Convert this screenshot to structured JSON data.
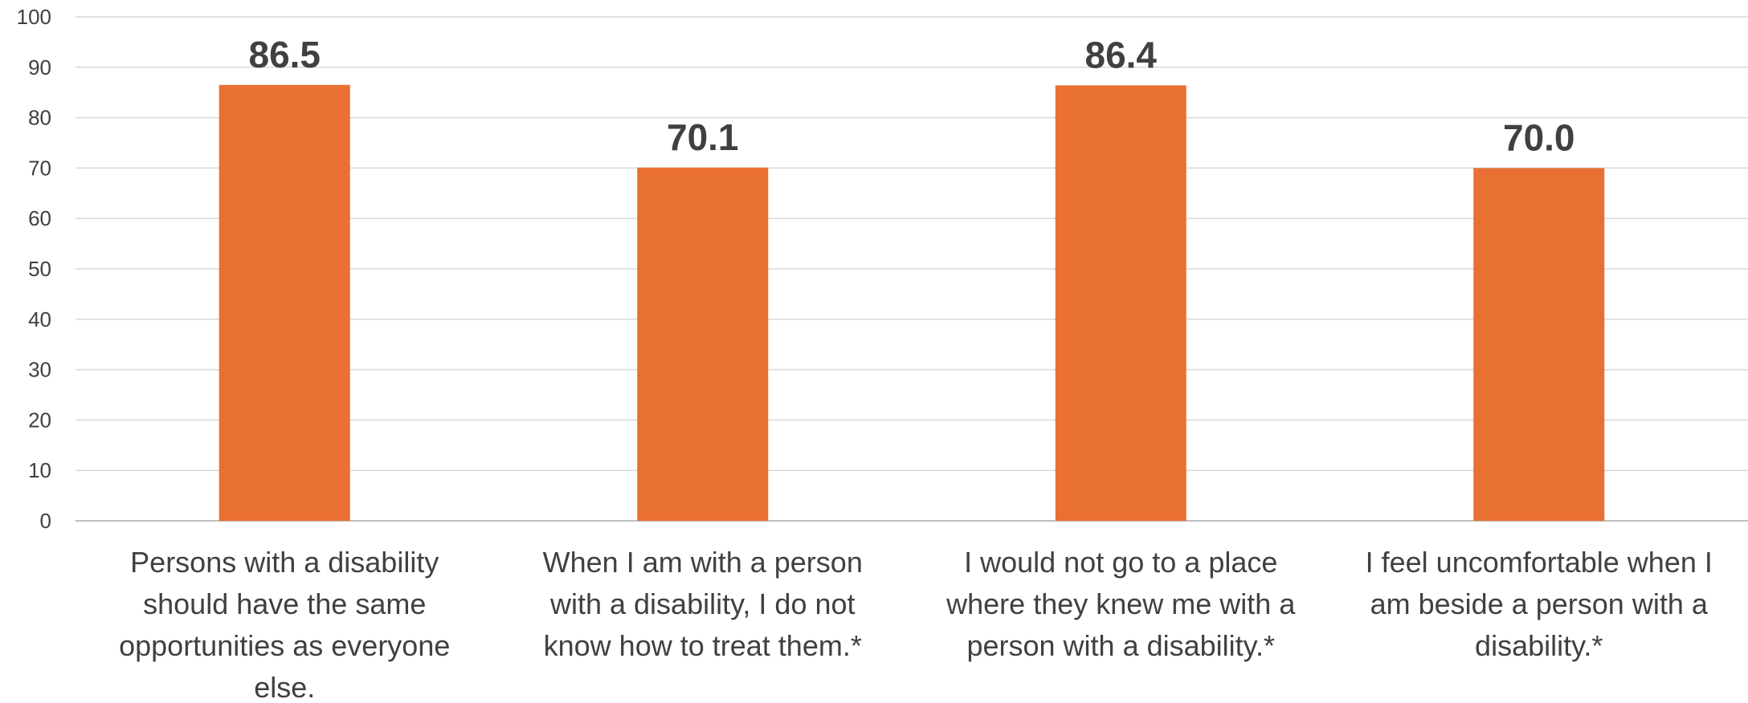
{
  "chart_data": {
    "type": "bar",
    "title": "",
    "xlabel": "",
    "ylabel": "",
    "ylim": [
      0,
      100
    ],
    "yticks": [
      0,
      10,
      20,
      30,
      40,
      50,
      60,
      70,
      80,
      90,
      100
    ],
    "grid": true,
    "legend": "none",
    "categories": [
      "Persons with a disability should have the same opportunities as everyone else.",
      "When I am with a person with a disability, I do not know how to treat them.*",
      "I would not go to a place where they knew me with a person with a disability.*",
      "I feel uncomfortable when I am beside a person with a disability.*"
    ],
    "category_label_lines": [
      [
        "Persons with a disability",
        "should have the same",
        "opportunities as everyone",
        "else."
      ],
      [
        "When I am with a person",
        "with a disability, I do not",
        "know how to treat them.*"
      ],
      [
        "I would not go to a place",
        "where they knew me with a",
        "person with a disability.*"
      ],
      [
        "I feel uncomfortable when I",
        "am beside a person with a",
        "disability.*"
      ]
    ],
    "values": [
      86.5,
      70.1,
      86.4,
      70.0
    ],
    "data_labels": [
      "86.5",
      "70.1",
      "86.4",
      "70.0"
    ],
    "colors": {
      "bar": "#E87032",
      "grid": "#D9D9D9",
      "axis": "#BFBFBF",
      "text": "#404040"
    }
  }
}
